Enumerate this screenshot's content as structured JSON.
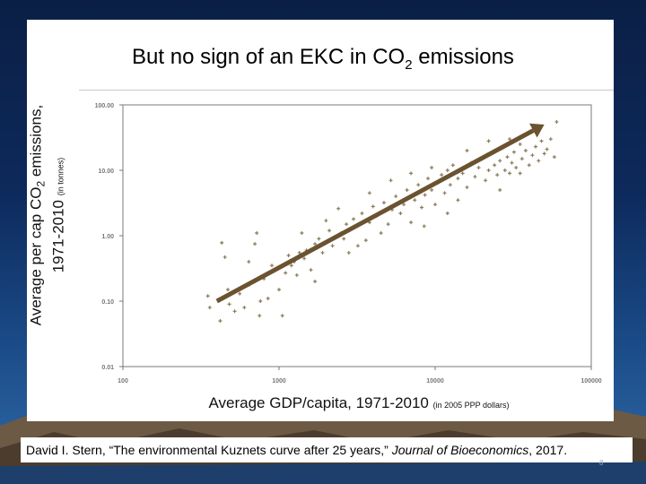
{
  "slide": {
    "title_main": "But no sign of an EKC in CO",
    "title_sub": "2",
    "title_end": " emissions",
    "citation_author": "David I. Stern, “The environmental Kuznets curve after 25 years,” ",
    "citation_journal": "Journal of Bioeconomics",
    "citation_year": ", 2017.",
    "page_number": "8"
  },
  "axis_labels": {
    "y_line1_a": "Average per cap CO",
    "y_line1_sub": "2",
    "y_line1_b": " emissions,",
    "y_line2": "1971-2010",
    "y_unit": "(in tonnes)",
    "x_main": "Average GDP/capita, 1971-2010",
    "x_unit": "(in 2005 PPP dollars)"
  },
  "chart_data": {
    "type": "scatter",
    "x_scale": "log",
    "y_scale": "log",
    "xlim": [
      100,
      100000
    ],
    "ylim": [
      0.01,
      100
    ],
    "x_ticks": [
      "100",
      "1000",
      "10000",
      "100000"
    ],
    "y_ticks": [
      "100.00",
      "10.00",
      "1.00",
      "0.10",
      "0.01"
    ],
    "x_tick_values": [
      100,
      1000,
      10000,
      100000
    ],
    "y_tick_values": [
      100,
      10,
      1,
      0.1,
      0.01
    ],
    "grid": false,
    "marker_color": "#8a7a5a",
    "arrow_color": "#6b5230",
    "trend_arrow": {
      "from": [
        400,
        0.1
      ],
      "to": [
        50000,
        50
      ]
    },
    "points": [
      [
        350,
        0.12
      ],
      [
        360,
        0.08
      ],
      [
        420,
        0.05
      ],
      [
        470,
        0.15
      ],
      [
        480,
        0.09
      ],
      [
        520,
        0.07
      ],
      [
        560,
        0.13
      ],
      [
        600,
        0.08
      ],
      [
        650,
        0.18
      ],
      [
        700,
        0.2
      ],
      [
        750,
        0.06
      ],
      [
        800,
        0.22
      ],
      [
        850,
        0.11
      ],
      [
        430,
        0.78
      ],
      [
        450,
        0.47
      ],
      [
        640,
        0.4
      ],
      [
        700,
        0.75
      ],
      [
        720,
        1.1
      ],
      [
        760,
        0.1
      ],
      [
        900,
        0.35
      ],
      [
        950,
        0.3
      ],
      [
        1000,
        0.15
      ],
      [
        1050,
        0.06
      ],
      [
        1100,
        0.27
      ],
      [
        1150,
        0.5
      ],
      [
        1200,
        0.35
      ],
      [
        1250,
        0.4
      ],
      [
        1300,
        0.25
      ],
      [
        1350,
        0.55
      ],
      [
        1450,
        0.45
      ],
      [
        1500,
        0.6
      ],
      [
        1600,
        0.3
      ],
      [
        1700,
        0.75
      ],
      [
        1800,
        0.9
      ],
      [
        1900,
        0.55
      ],
      [
        2000,
        0.8
      ],
      [
        2100,
        1.2
      ],
      [
        2200,
        0.7
      ],
      [
        2300,
        0.95
      ],
      [
        2500,
        1.1
      ],
      [
        2600,
        0.9
      ],
      [
        2700,
        1.5
      ],
      [
        2800,
        0.55
      ],
      [
        2900,
        1.3
      ],
      [
        3000,
        1.8
      ],
      [
        3200,
        0.7
      ],
      [
        3400,
        2.2
      ],
      [
        3600,
        0.85
      ],
      [
        3800,
        1.6
      ],
      [
        4000,
        2.8
      ],
      [
        4200,
        2.0
      ],
      [
        4500,
        1.1
      ],
      [
        4700,
        3.2
      ],
      [
        5000,
        1.5
      ],
      [
        5300,
        2.5
      ],
      [
        5600,
        4.0
      ],
      [
        6000,
        2.2
      ],
      [
        6300,
        3.0
      ],
      [
        6600,
        5.0
      ],
      [
        7000,
        1.6
      ],
      [
        7400,
        3.5
      ],
      [
        7800,
        6.0
      ],
      [
        8200,
        2.7
      ],
      [
        8600,
        4.2
      ],
      [
        9000,
        7.5
      ],
      [
        9500,
        5.0
      ],
      [
        10000,
        3.0
      ],
      [
        10500,
        6.5
      ],
      [
        11000,
        8.5
      ],
      [
        11500,
        4.5
      ],
      [
        12000,
        10.0
      ],
      [
        12500,
        6.0
      ],
      [
        13000,
        12.0
      ],
      [
        14000,
        7.5
      ],
      [
        15000,
        9.0
      ],
      [
        16000,
        5.5
      ],
      [
        17000,
        13.0
      ],
      [
        18000,
        8.0
      ],
      [
        19000,
        11.0
      ],
      [
        20000,
        15.0
      ],
      [
        21000,
        7.0
      ],
      [
        22000,
        10.0
      ],
      [
        23000,
        18.0
      ],
      [
        24000,
        12.0
      ],
      [
        25000,
        8.5
      ],
      [
        26000,
        14.0
      ],
      [
        27000,
        22.0
      ],
      [
        28000,
        10.0
      ],
      [
        29000,
        16.0
      ],
      [
        30000,
        9.0
      ],
      [
        31000,
        13.0
      ],
      [
        32000,
        19.0
      ],
      [
        33000,
        11.0
      ],
      [
        35000,
        25.0
      ],
      [
        36000,
        15.0
      ],
      [
        38000,
        20.0
      ],
      [
        40000,
        12.0
      ],
      [
        42000,
        17.0
      ],
      [
        44000,
        23.0
      ],
      [
        46000,
        14.0
      ],
      [
        48000,
        28.0
      ],
      [
        50000,
        18.0
      ],
      [
        52000,
        21.0
      ],
      [
        55000,
        30.0
      ],
      [
        58000,
        16.0
      ],
      [
        60000,
        55.0
      ],
      [
        16000,
        20.0
      ],
      [
        9500,
        11.0
      ],
      [
        7000,
        9.0
      ],
      [
        5200,
        7.0
      ],
      [
        14000,
        3.5
      ],
      [
        26000,
        5.0
      ],
      [
        3800,
        4.5
      ],
      [
        12000,
        2.2
      ],
      [
        2000,
        1.7
      ],
      [
        1700,
        0.2
      ],
      [
        1400,
        1.1
      ],
      [
        2400,
        2.6
      ],
      [
        8500,
        1.4
      ],
      [
        30000,
        30.0
      ],
      [
        35000,
        9.0
      ],
      [
        22000,
        28.0
      ],
      [
        45000,
        40.0
      ]
    ]
  }
}
